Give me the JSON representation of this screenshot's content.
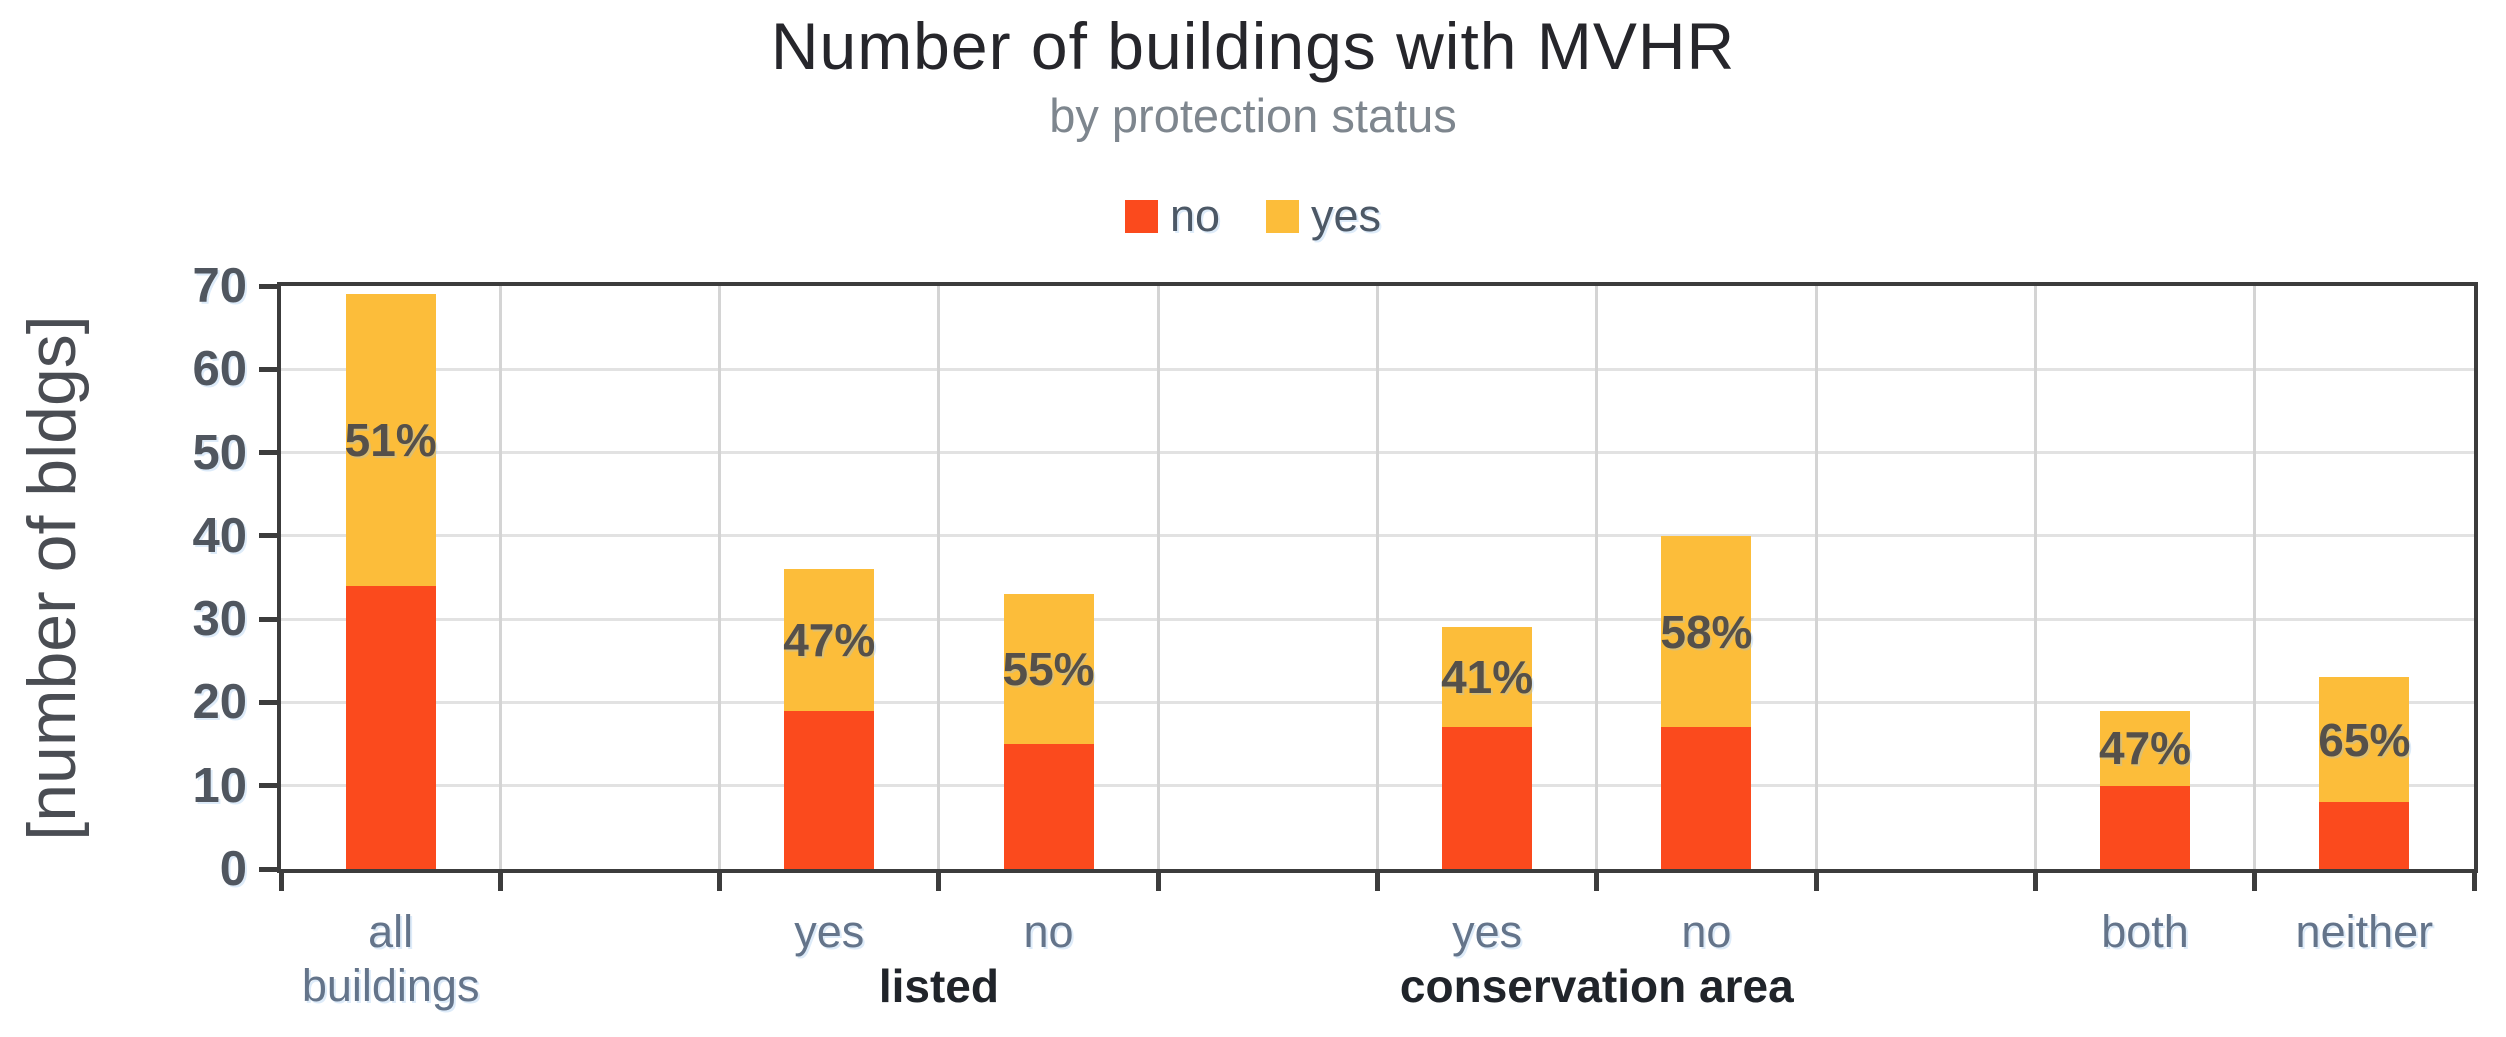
{
  "chart_data": {
    "type": "bar",
    "stacked": true,
    "title": "Number of buildings with MVHR",
    "subtitle": "by protection status",
    "ylabel": "[number of bldgs]",
    "ylim": [
      0,
      70
    ],
    "ytick_step": 10,
    "yticks": [
      0,
      10,
      20,
      30,
      40,
      50,
      60,
      70
    ],
    "grid": true,
    "legend_position": "top-center",
    "series": [
      {
        "name": "no",
        "color": "#fb4a1d"
      },
      {
        "name": "yes",
        "color": "#fcbd3a"
      }
    ],
    "slot_count": 10,
    "bars": [
      {
        "slot": 1,
        "category_lines": [
          "all",
          "buildings"
        ],
        "no": 34,
        "yes": 35,
        "total": 69,
        "pct_label": "51%"
      },
      {
        "slot": 3,
        "category_lines": [
          "yes"
        ],
        "no": 19,
        "yes": 17,
        "total": 36,
        "pct_label": "47%"
      },
      {
        "slot": 4,
        "category_lines": [
          "no"
        ],
        "no": 15,
        "yes": 18,
        "total": 33,
        "pct_label": "55%"
      },
      {
        "slot": 6,
        "category_lines": [
          "yes"
        ],
        "no": 17,
        "yes": 12,
        "total": 29,
        "pct_label": "41%"
      },
      {
        "slot": 7,
        "category_lines": [
          "no"
        ],
        "no": 17,
        "yes": 23,
        "total": 40,
        "pct_label": "58%"
      },
      {
        "slot": 9,
        "category_lines": [
          "both"
        ],
        "no": 10,
        "yes": 9,
        "total": 19,
        "pct_label": "47%"
      },
      {
        "slot": 10,
        "category_lines": [
          "neither"
        ],
        "no": 8,
        "yes": 15,
        "total": 23,
        "pct_label": "65%"
      }
    ],
    "groups": [
      {
        "label": "listed",
        "slots": [
          3,
          4
        ]
      },
      {
        "label": "conservation area",
        "slots": [
          6,
          7
        ]
      }
    ],
    "colors": {
      "grid_h": "#e2e2e2",
      "grid_v": "#d4d4d4",
      "axis": "#3c3c3c",
      "tick_label": "#50565f",
      "category_label": "#64748a",
      "group_label": "#20242a",
      "pct_label": "#55504a",
      "title": "#26262b",
      "subtitle": "#7e868e",
      "legend_text": "#4c5866"
    }
  }
}
